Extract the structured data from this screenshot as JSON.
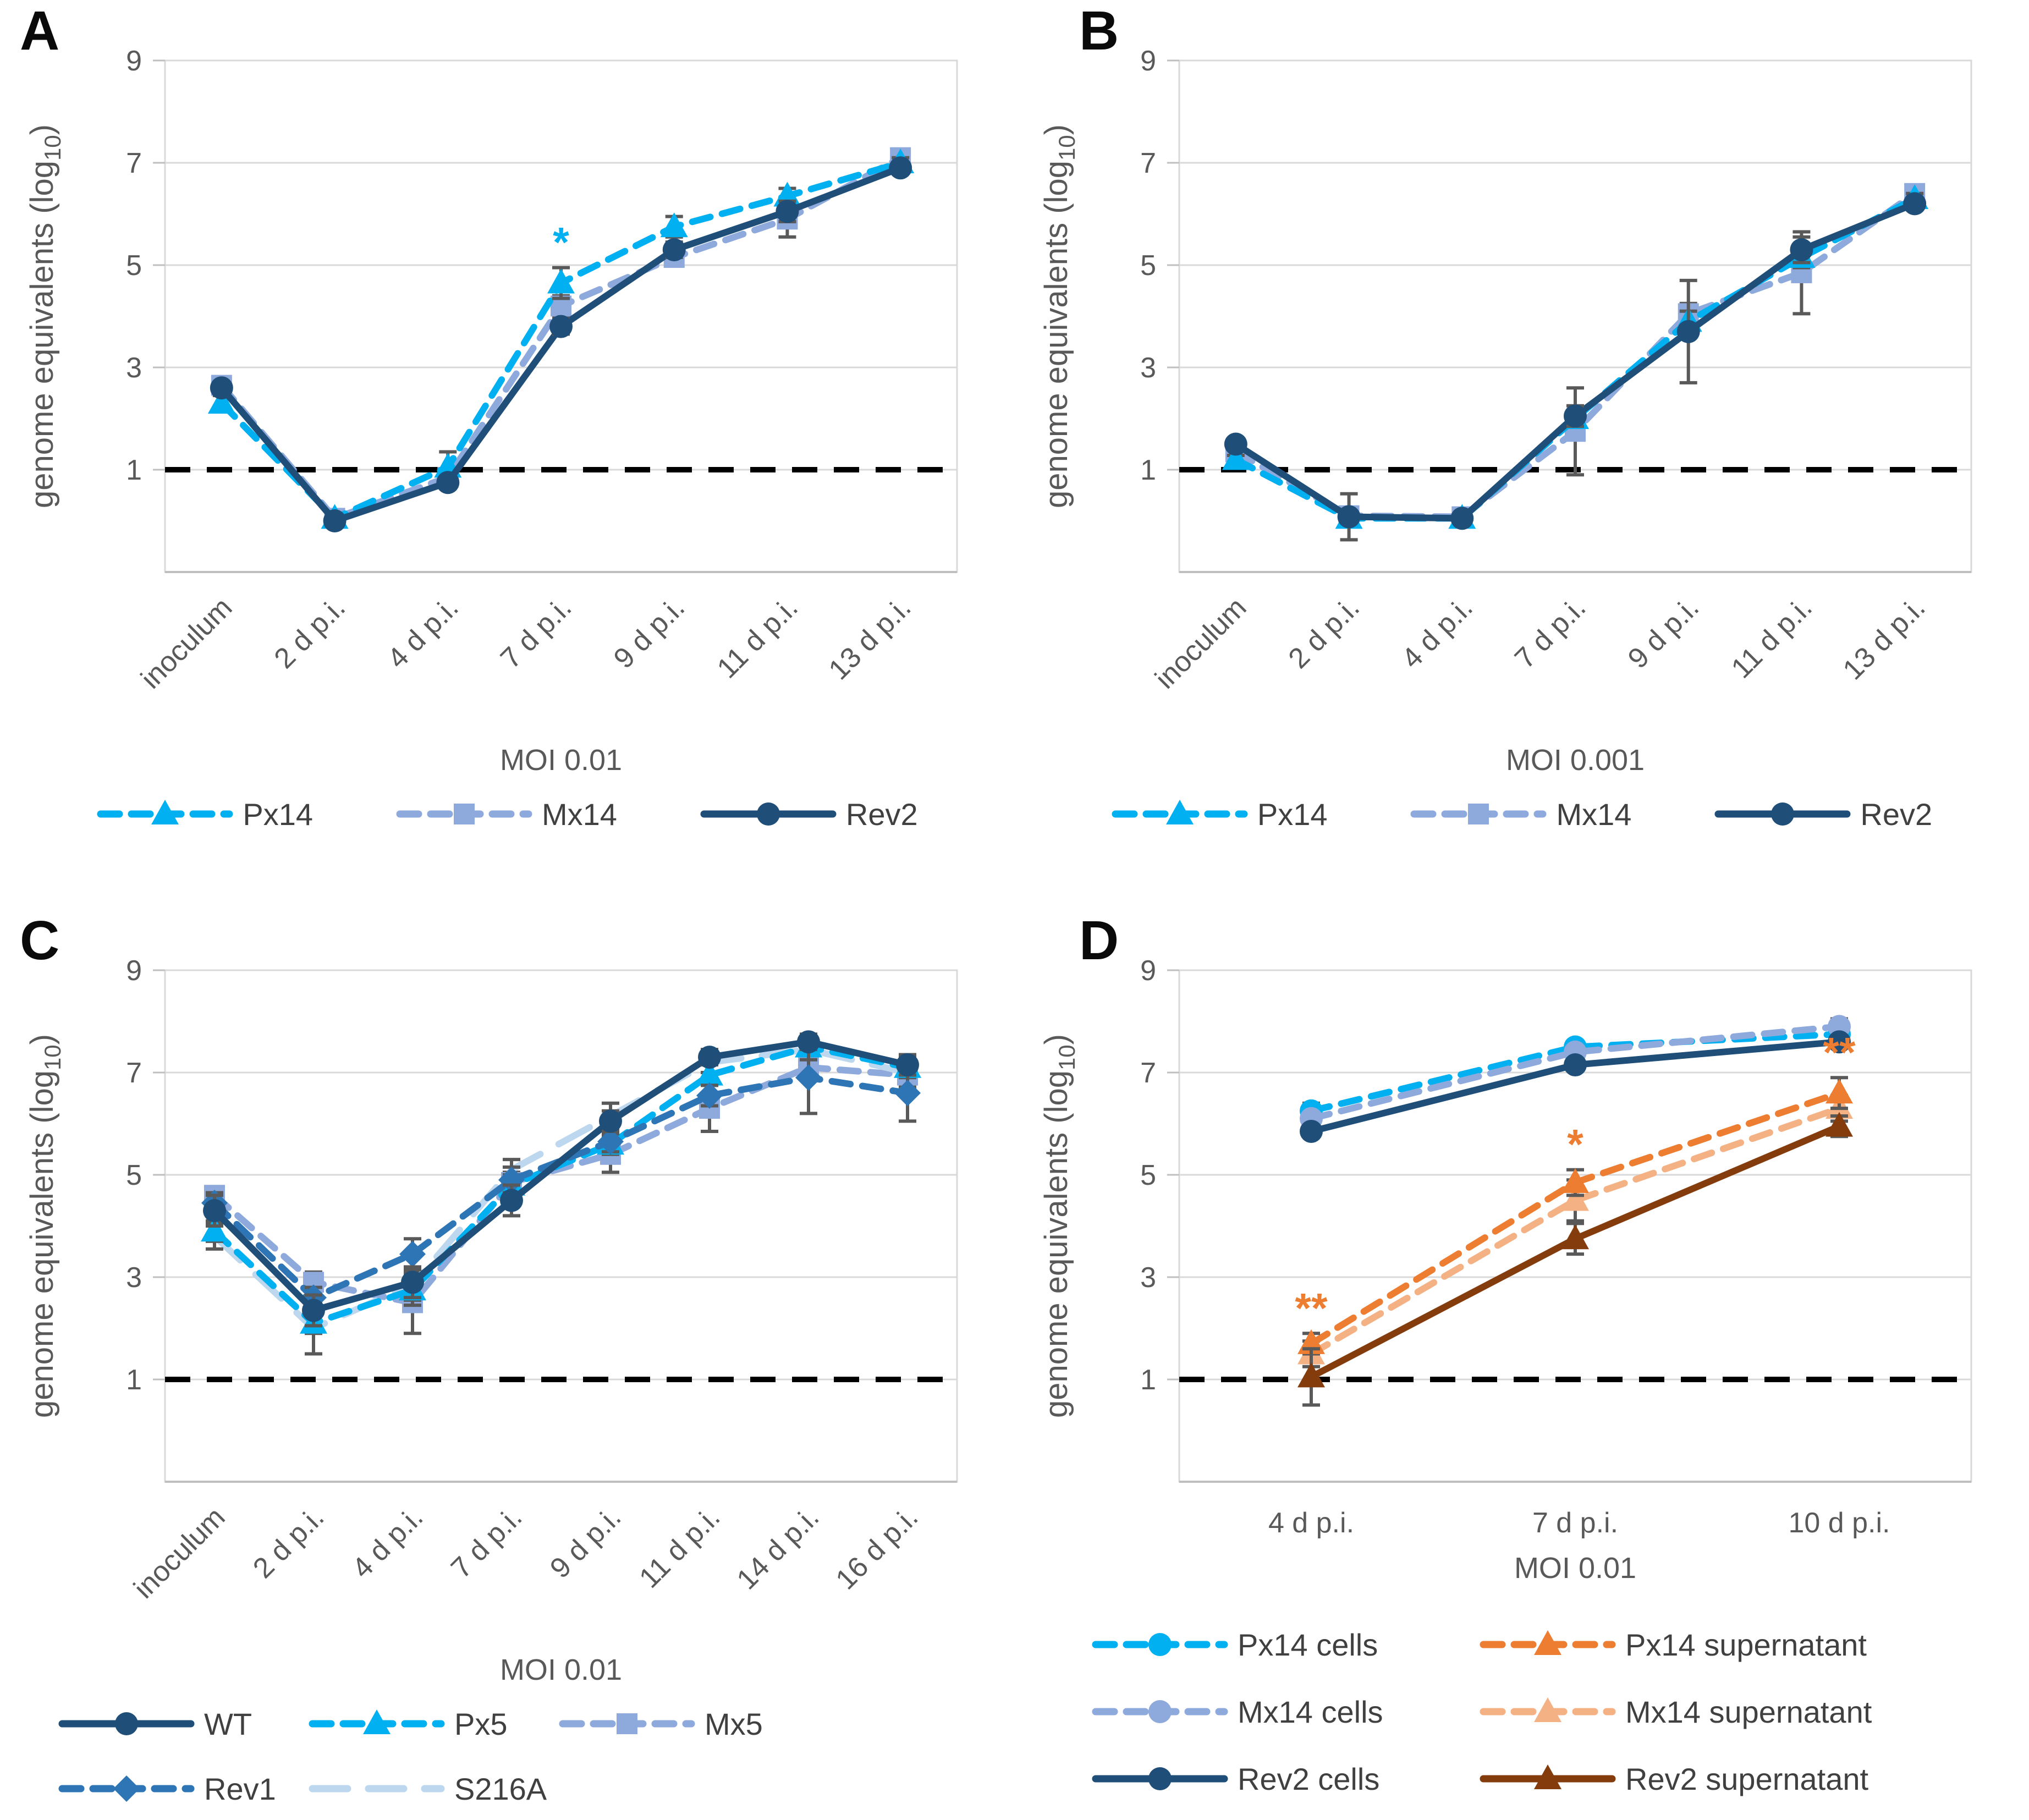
{
  "figure_title": "",
  "chart_data": [
    {
      "id": "A",
      "panel_label": "A",
      "type": "line",
      "y_label": "genome equivalents (log10)",
      "x_label": "MOI 0.01",
      "categories": [
        "inoculum",
        "2 d p.i.",
        "4 d p.i.",
        "7 d p.i.",
        "9 d p.i.",
        "11 d p.i.",
        "13 d p.i."
      ],
      "ylim": [
        -1,
        9
      ],
      "yticks": [
        1,
        3,
        5,
        7,
        9
      ],
      "threshold_y": 1,
      "x_tick_rotation": -45,
      "grid": true,
      "series": [
        {
          "name": "Mx14",
          "color": "#8EA9DB",
          "line": "dash",
          "marker": "square",
          "values": [
            2.65,
            0.05,
            0.85,
            4.2,
            5.15,
            5.9,
            7.1
          ],
          "err": [
            0.1,
            0,
            0.15,
            0.2,
            0.15,
            0.35,
            0.1
          ]
        },
        {
          "name": "Px14",
          "color": "#00B0F0",
          "line": "dash",
          "marker": "triangle",
          "values": [
            2.3,
            0.05,
            1.05,
            4.65,
            5.75,
            6.35,
            7.0
          ],
          "err": [
            0.15,
            0,
            0.3,
            0.3,
            0.2,
            0.15,
            0.1
          ]
        },
        {
          "name": "Rev2",
          "color": "#1F4E79",
          "line": "solid",
          "marker": "circle",
          "values": [
            2.6,
            0.0,
            0.75,
            3.8,
            5.3,
            6.05,
            6.9
          ],
          "err": [
            0.1,
            0,
            0.1,
            0.15,
            0.15,
            0.2,
            0.1
          ]
        }
      ],
      "annotations": [
        {
          "series": "Px14",
          "index": 3,
          "text": "*",
          "color": "#00B0F0"
        }
      ],
      "legend_rows": [
        [
          "Px14",
          "Mx14",
          "Rev2"
        ]
      ]
    },
    {
      "id": "B",
      "panel_label": "B",
      "type": "line",
      "y_label": "genome equivalents (log10)",
      "x_label": "MOI 0.001",
      "categories": [
        "inoculum",
        "2 d p.i.",
        "4 d p.i.",
        "7 d p.i.",
        "9 d p.i.",
        "11 d p.i.",
        "13 d p.i."
      ],
      "ylim": [
        -1,
        9
      ],
      "yticks": [
        1,
        3,
        5,
        7,
        9
      ],
      "threshold_y": 1,
      "x_tick_rotation": -45,
      "grid": true,
      "series": [
        {
          "name": "Mx14",
          "color": "#8EA9DB",
          "line": "dash",
          "marker": "square",
          "values": [
            1.35,
            0.1,
            0.08,
            1.75,
            4.05,
            4.85,
            6.4
          ],
          "err": [
            0.1,
            0.08,
            0.05,
            0.85,
            0.2,
            0.8,
            0.12
          ]
        },
        {
          "name": "Px14",
          "color": "#00B0F0",
          "line": "dash",
          "marker": "triangle",
          "values": [
            1.2,
            0.05,
            0.05,
            2.0,
            3.9,
            5.15,
            6.3
          ],
          "err": [
            0.08,
            0.05,
            0.05,
            0.15,
            0.2,
            0.2,
            0.1
          ]
        },
        {
          "name": "Rev2",
          "color": "#1F4E79",
          "line": "solid",
          "marker": "circle",
          "values": [
            1.5,
            0.08,
            0.05,
            2.05,
            3.7,
            5.3,
            6.2
          ],
          "err": [
            0.1,
            0.45,
            0.05,
            0.2,
            1.0,
            0.25,
            0.1
          ]
        }
      ],
      "annotations": [],
      "legend_rows": [
        [
          "Px14",
          "Mx14",
          "Rev2"
        ]
      ]
    },
    {
      "id": "C",
      "panel_label": "C",
      "type": "line",
      "y_label": "genome equivalents (log10)",
      "x_label": "MOI 0.01",
      "categories": [
        "inoculum",
        "2 d p.i.",
        "4 d p.i.",
        "7 d p.i.",
        "9 d p.i.",
        "11 d p.i.",
        "14 d p.i.",
        "16 d p.i."
      ],
      "ylim": [
        -1,
        9
      ],
      "yticks": [
        1,
        3,
        5,
        7,
        9
      ],
      "threshold_y": 1,
      "x_tick_rotation": -45,
      "grid": true,
      "series": [
        {
          "name": "Mx5",
          "color": "#8EA9DB",
          "line": "dash",
          "marker": "square",
          "values": [
            4.6,
            2.9,
            2.5,
            4.85,
            5.4,
            6.3,
            7.1,
            6.95
          ],
          "err": [
            0.15,
            0.2,
            0.6,
            0.2,
            0.35,
            0.45,
            0.2,
            0.2
          ]
        },
        {
          "name": "S216A",
          "color": "#BDD7EE",
          "line": "long",
          "marker": "none",
          "values": [
            3.8,
            2.0,
            2.85,
            5.1,
            6.15,
            7.2,
            7.45,
            7.0
          ],
          "err": [
            0.25,
            0.5,
            0.3,
            0.2,
            0.25,
            0.2,
            0.2,
            0.3
          ]
        },
        {
          "name": "Px5",
          "color": "#00B0F0",
          "line": "dash",
          "marker": "triangle",
          "values": [
            3.9,
            2.1,
            2.75,
            4.8,
            5.6,
            6.95,
            7.5,
            7.1
          ],
          "err": [
            0.2,
            0.2,
            0.3,
            0.2,
            0.2,
            0.2,
            0.15,
            0.2
          ]
        },
        {
          "name": "Rev1",
          "color": "#2E75B6",
          "line": "dash",
          "marker": "diamond",
          "values": [
            4.45,
            2.6,
            3.45,
            4.9,
            5.65,
            6.55,
            6.9,
            6.6
          ],
          "err": [
            0.2,
            0.2,
            0.3,
            0.25,
            0.2,
            0.2,
            0.7,
            0.55
          ]
        },
        {
          "name": "WT",
          "color": "#1F4E79",
          "line": "solid",
          "marker": "circle",
          "values": [
            4.3,
            2.35,
            2.9,
            4.5,
            6.05,
            7.3,
            7.6,
            7.15
          ],
          "err": [
            0.3,
            0.3,
            0.3,
            0.3,
            0.2,
            0.15,
            0.15,
            0.2
          ]
        }
      ],
      "annotations": [],
      "legend_rows": [
        [
          "WT",
          "Px5",
          "Mx5"
        ],
        [
          "Rev1",
          "S216A"
        ]
      ]
    },
    {
      "id": "D",
      "panel_label": "D",
      "type": "line",
      "y_label": "genome equivalents (log10)",
      "x_label": "MOI 0.01",
      "categories": [
        "4 d p.i.",
        "7 d p.i.",
        "10 d p.i."
      ],
      "ylim": [
        -1,
        9
      ],
      "yticks": [
        1,
        3,
        5,
        7,
        9
      ],
      "threshold_y": 1,
      "x_tick_rotation": 0,
      "grid": true,
      "series": [
        {
          "name": "Px14 cells",
          "color": "#00B0F0",
          "line": "dash",
          "marker": "circle",
          "values": [
            6.25,
            7.5,
            7.75
          ],
          "err": [
            0.15,
            0.1,
            0.1
          ]
        },
        {
          "name": "Mx14 cells",
          "color": "#8EA9DB",
          "line": "dash",
          "marker": "circle",
          "values": [
            6.1,
            7.4,
            7.9
          ],
          "err": [
            0.1,
            0.1,
            0.15
          ]
        },
        {
          "name": "Rev2 cells",
          "color": "#1F4E79",
          "line": "solid",
          "marker": "circle",
          "values": [
            5.85,
            7.15,
            7.6
          ],
          "err": [
            0.1,
            0.1,
            0.1
          ]
        },
        {
          "name": "Mx14 supernatant",
          "color": "#F4B183",
          "line": "dash",
          "marker": "triangle",
          "values": [
            1.5,
            4.5,
            6.3
          ],
          "err": [
            0.25,
            0.4,
            0.25
          ]
        },
        {
          "name": "Px14 supernatant",
          "color": "#ED7D31",
          "line": "dash",
          "marker": "triangle",
          "values": [
            1.7,
            4.85,
            6.6
          ],
          "err": [
            0.2,
            0.25,
            0.3
          ]
        },
        {
          "name": "Rev2 supernatant",
          "color": "#843C0C",
          "line": "solid",
          "marker": "triangle",
          "values": [
            1.05,
            3.75,
            5.95
          ],
          "err": [
            0.55,
            0.3,
            0.2
          ]
        }
      ],
      "annotations": [
        {
          "series": "Px14 supernatant",
          "index": 0,
          "text": "**",
          "color": "#ED7D31"
        },
        {
          "series": "Px14 supernatant",
          "index": 1,
          "text": "*",
          "color": "#ED7D31"
        },
        {
          "series": "Px14 supernatant",
          "index": 2,
          "text": "**",
          "color": "#ED7D31"
        }
      ],
      "legend_rows": [
        [
          "Px14 cells",
          "Px14 supernatant"
        ],
        [
          "Mx14 cells",
          "Mx14 supernatant"
        ],
        [
          "Rev2 cells",
          "Rev2 supernatant"
        ]
      ]
    }
  ],
  "style": {
    "grid_color": "#D9D9D9",
    "axis_color": "#BFBFBF",
    "tick_text_color": "#595959",
    "legend_text_color": "#404040",
    "errorbar_color": "#595959",
    "threshold_color": "#000000"
  }
}
